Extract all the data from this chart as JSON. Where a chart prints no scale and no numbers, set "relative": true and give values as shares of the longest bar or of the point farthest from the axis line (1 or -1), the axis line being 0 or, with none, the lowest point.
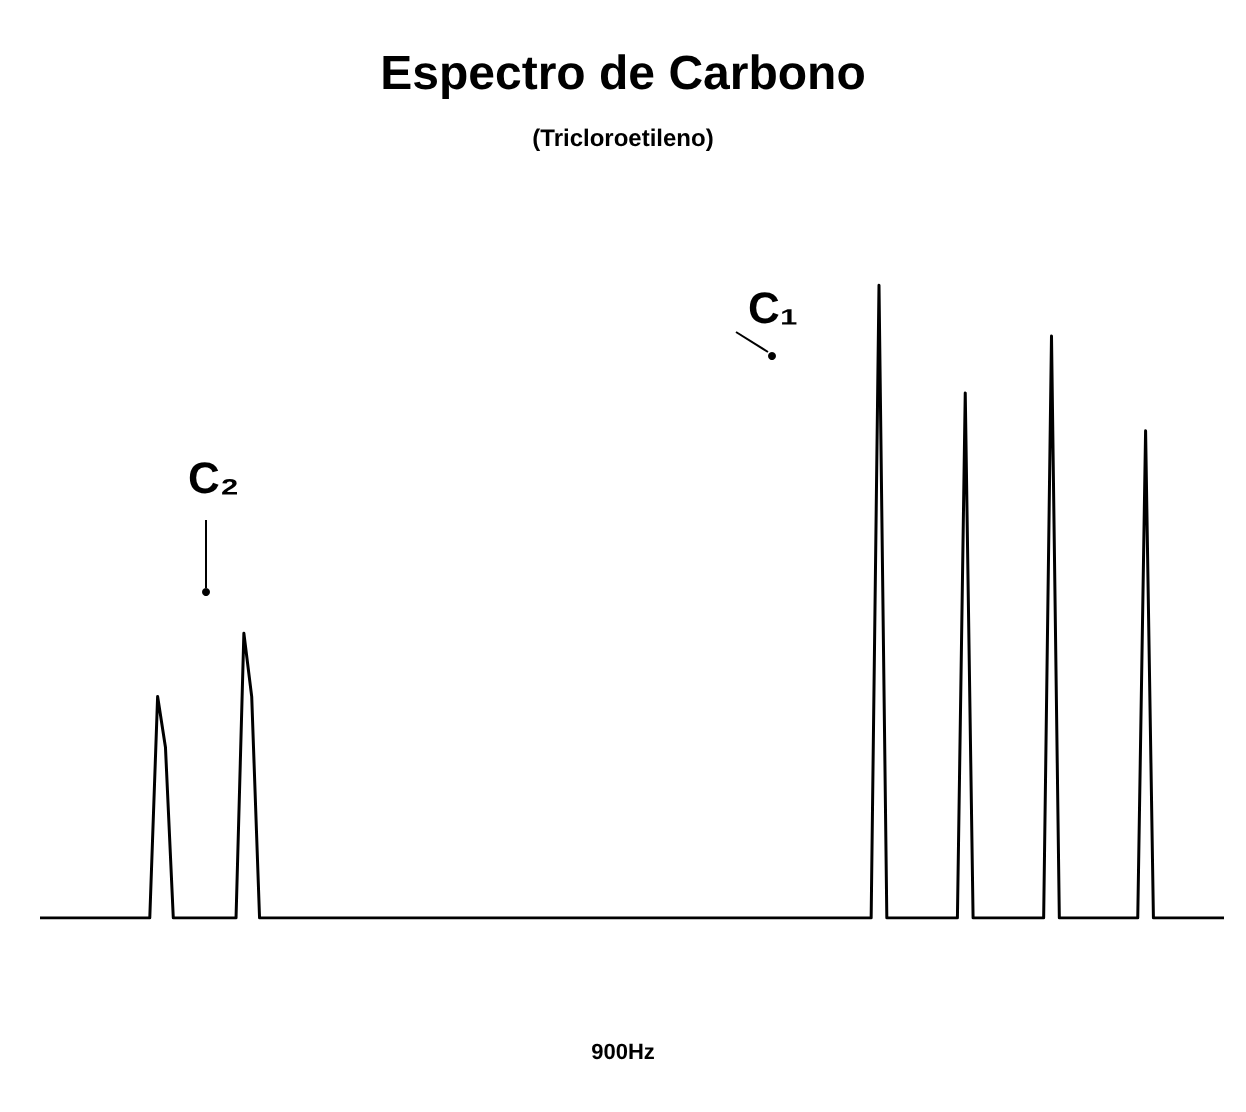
{
  "chart_data": {
    "type": "line",
    "title": "Espectro de Carbono",
    "subtitle": "(Tricloroetileno)",
    "relative": true,
    "line_style": "solid",
    "grid": false,
    "annotations": [
      "C₂",
      "C₁",
      "900Hz"
    ],
    "categories": [
      null,
      null,
      null,
      null,
      null,
      null,
      null,
      null,
      null,
      null,
      null,
      null,
      null,
      null,
      null,
      null,
      null,
      null,
      null,
      null,
      null,
      null,
      null,
      null,
      null,
      null,
      null,
      null,
      null,
      null,
      null,
      null,
      null,
      null,
      null,
      null,
      null,
      null,
      null,
      null,
      null,
      null,
      null,
      null,
      null,
      null,
      null,
      null,
      null,
      null,
      null,
      null,
      null,
      null,
      null,
      null,
      null,
      null,
      null,
      null,
      null,
      null,
      null,
      null,
      null,
      null,
      null,
      null,
      null,
      null,
      null,
      null,
      null,
      null,
      null,
      null,
      null,
      null,
      null,
      null,
      null,
      null,
      null,
      null,
      null,
      null,
      null,
      null,
      null,
      null,
      null,
      null,
      null,
      null,
      null,
      null,
      null,
      null,
      null,
      null,
      null,
      null,
      null,
      null,
      null,
      null,
      null,
      null,
      null,
      null,
      null,
      null,
      null,
      null,
      null,
      null,
      null,
      null,
      null,
      null,
      null,
      null,
      null,
      null,
      null,
      null,
      null,
      null,
      null,
      null,
      null,
      null,
      null,
      null,
      null,
      null,
      null,
      null,
      null,
      null,
      null,
      null,
      null,
      null,
      null,
      null,
      null,
      null,
      null,
      null,
      null,
      null
    ],
    "series": [
      {
        "color": "#000000",
        "values": [
          0,
          0,
          0,
          0,
          0,
          0,
          0,
          0,
          0,
          0,
          0,
          0,
          0,
          0,
          0,
          0.35,
          0.27,
          0,
          0,
          0,
          0,
          0,
          0,
          0,
          0,
          0,
          0.45,
          0.35,
          0,
          0,
          0,
          0,
          0,
          0,
          0,
          0,
          0,
          0,
          0,
          0,
          0,
          0,
          0,
          0,
          0,
          0,
          0,
          0,
          0,
          0,
          0,
          0,
          0,
          0,
          0,
          0,
          0,
          0,
          0,
          0,
          0,
          0,
          0,
          0,
          0,
          0,
          0,
          0,
          0,
          0,
          0,
          0,
          0,
          0,
          0,
          0,
          0,
          0,
          0,
          0,
          0,
          0,
          0,
          0,
          0,
          0,
          0,
          0,
          0,
          0,
          0,
          0,
          0,
          0,
          0,
          0,
          0,
          0,
          0,
          0,
          0,
          0,
          0,
          0,
          0,
          0,
          0,
          1,
          0,
          0,
          0,
          0,
          0,
          0,
          0,
          0,
          0,
          0,
          0.83,
          0,
          0,
          0,
          0,
          0,
          0,
          0,
          0,
          0,
          0,
          0.92,
          0,
          0,
          0,
          0,
          0,
          0,
          0,
          0,
          0,
          0,
          0,
          0.77,
          0,
          0,
          0,
          0,
          0,
          0,
          0,
          0,
          0,
          0
        ]
      }
    ]
  }
}
